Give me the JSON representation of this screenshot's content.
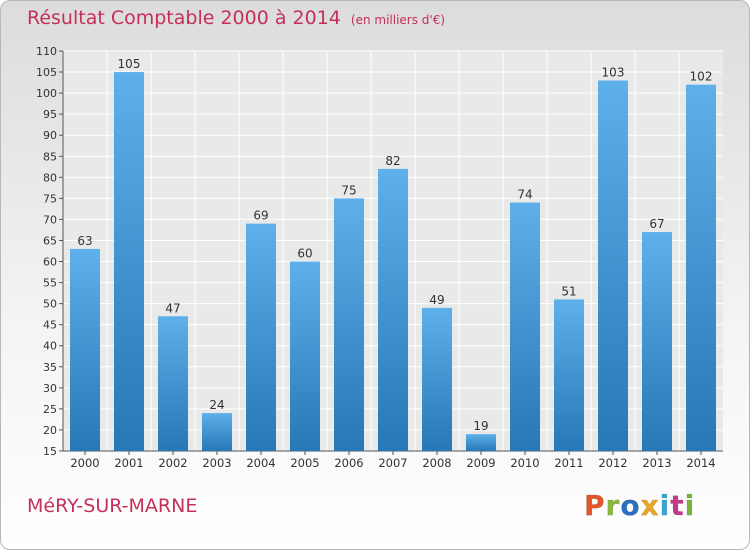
{
  "chart_data": {
    "type": "bar",
    "title": "Résultat Comptable 2000 à 2014",
    "unit_note": "(en milliers d'€)",
    "categories": [
      "2000",
      "2001",
      "2002",
      "2003",
      "2004",
      "2005",
      "2006",
      "2007",
      "2008",
      "2009",
      "2010",
      "2011",
      "2012",
      "2013",
      "2014"
    ],
    "values": [
      63,
      105,
      47,
      24,
      69,
      60,
      75,
      82,
      49,
      19,
      74,
      51,
      103,
      67,
      102
    ],
    "ylim": [
      15,
      110
    ],
    "yticks": [
      15,
      20,
      25,
      30,
      35,
      40,
      45,
      50,
      55,
      60,
      65,
      70,
      75,
      80,
      85,
      90,
      95,
      100,
      105,
      110
    ],
    "grid": true,
    "bar_color_light": "#5eb0ea",
    "bar_color_dark": "#2678b6",
    "title_color": "#c4305a"
  },
  "footer": {
    "city": "MéRY-SUR-MARNE",
    "brand": "Proxiti",
    "brand_colors": [
      "#e3562a",
      "#8cb83c",
      "#2a6fc0",
      "#e9a526",
      "#3aa5d8",
      "#c43a8a",
      "#7ab33c"
    ]
  }
}
